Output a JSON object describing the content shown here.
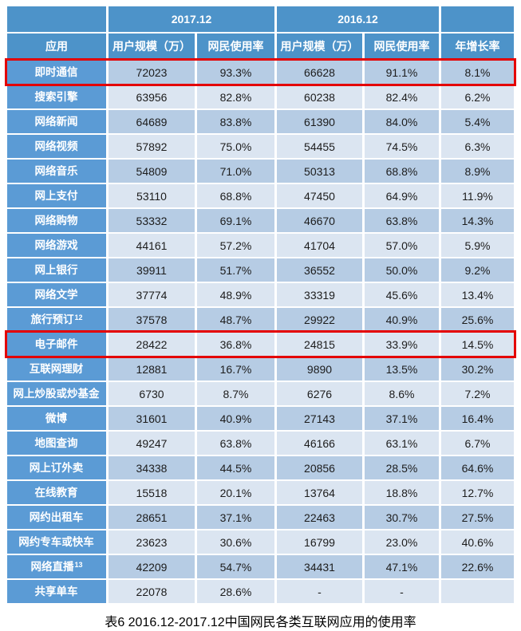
{
  "chart_data": {
    "type": "table",
    "caption": "表6 2016.12-2017.12中国网民各类互联网应用的使用率",
    "header": {
      "period_2017": "2017.12",
      "period_2016": "2016.12",
      "col_app": "应用",
      "col_user_scale_2017": "用户规模（万）",
      "col_usage_rate_2017": "网民使用率",
      "col_user_scale_2016": "用户规模（万）",
      "col_usage_rate_2016": "网民使用率",
      "col_growth": "年增长率"
    },
    "rows": [
      {
        "app": "即时通信",
        "u2017": "72023",
        "r2017": "93.3%",
        "u2016": "66628",
        "r2016": "91.1%",
        "growth": "8.1%",
        "highlight": true
      },
      {
        "app": "搜索引擎",
        "u2017": "63956",
        "r2017": "82.8%",
        "u2016": "60238",
        "r2016": "82.4%",
        "growth": "6.2%"
      },
      {
        "app": "网络新闻",
        "u2017": "64689",
        "r2017": "83.8%",
        "u2016": "61390",
        "r2016": "84.0%",
        "growth": "5.4%"
      },
      {
        "app": "网络视频",
        "u2017": "57892",
        "r2017": "75.0%",
        "u2016": "54455",
        "r2016": "74.5%",
        "growth": "6.3%"
      },
      {
        "app": "网络音乐",
        "u2017": "54809",
        "r2017": "71.0%",
        "u2016": "50313",
        "r2016": "68.8%",
        "growth": "8.9%"
      },
      {
        "app": "网上支付",
        "u2017": "53110",
        "r2017": "68.8%",
        "u2016": "47450",
        "r2016": "64.9%",
        "growth": "11.9%"
      },
      {
        "app": "网络购物",
        "u2017": "53332",
        "r2017": "69.1%",
        "u2016": "46670",
        "r2016": "63.8%",
        "growth": "14.3%"
      },
      {
        "app": "网络游戏",
        "u2017": "44161",
        "r2017": "57.2%",
        "u2016": "41704",
        "r2016": "57.0%",
        "growth": "5.9%"
      },
      {
        "app": "网上银行",
        "u2017": "39911",
        "r2017": "51.7%",
        "u2016": "36552",
        "r2016": "50.0%",
        "growth": "9.2%"
      },
      {
        "app": "网络文学",
        "u2017": "37774",
        "r2017": "48.9%",
        "u2016": "33319",
        "r2016": "45.6%",
        "growth": "13.4%"
      },
      {
        "app": "旅行预订",
        "sup": "12",
        "u2017": "37578",
        "r2017": "48.7%",
        "u2016": "29922",
        "r2016": "40.9%",
        "growth": "25.6%"
      },
      {
        "app": "电子邮件",
        "u2017": "28422",
        "r2017": "36.8%",
        "u2016": "24815",
        "r2016": "33.9%",
        "growth": "14.5%",
        "highlight": true
      },
      {
        "app": "互联网理财",
        "u2017": "12881",
        "r2017": "16.7%",
        "u2016": "9890",
        "r2016": "13.5%",
        "growth": "30.2%"
      },
      {
        "app": "网上炒股或炒基金",
        "u2017": "6730",
        "r2017": "8.7%",
        "u2016": "6276",
        "r2016": "8.6%",
        "growth": "7.2%"
      },
      {
        "app": "微博",
        "u2017": "31601",
        "r2017": "40.9%",
        "u2016": "27143",
        "r2016": "37.1%",
        "growth": "16.4%"
      },
      {
        "app": "地图查询",
        "u2017": "49247",
        "r2017": "63.8%",
        "u2016": "46166",
        "r2016": "63.1%",
        "growth": "6.7%"
      },
      {
        "app": "网上订外卖",
        "u2017": "34338",
        "r2017": "44.5%",
        "u2016": "20856",
        "r2016": "28.5%",
        "growth": "64.6%"
      },
      {
        "app": "在线教育",
        "u2017": "15518",
        "r2017": "20.1%",
        "u2016": "13764",
        "r2016": "18.8%",
        "growth": "12.7%"
      },
      {
        "app": "网约出租车",
        "u2017": "28651",
        "r2017": "37.1%",
        "u2016": "22463",
        "r2016": "30.7%",
        "growth": "27.5%"
      },
      {
        "app": "网约专车或快车",
        "u2017": "23623",
        "r2017": "30.6%",
        "u2016": "16799",
        "r2016": "23.0%",
        "growth": "40.6%"
      },
      {
        "app": "网络直播",
        "sup": "13",
        "u2017": "42209",
        "r2017": "54.7%",
        "u2016": "34431",
        "r2016": "47.1%",
        "growth": "22.6%"
      },
      {
        "app": "共享单车",
        "u2017": "22078",
        "r2017": "28.6%",
        "u2016": "-",
        "r2016": "-",
        "growth": ""
      }
    ],
    "highlighted_rows": [
      "即时通信",
      "电子邮件"
    ]
  },
  "colors": {
    "header_blue": "#4d93c9",
    "row_label_blue": "#5b9bd5",
    "band_light": "#dbe5f1",
    "band_dark": "#b6cce4",
    "highlight_red": "#e40000",
    "value_text": "#1c1c1c"
  }
}
